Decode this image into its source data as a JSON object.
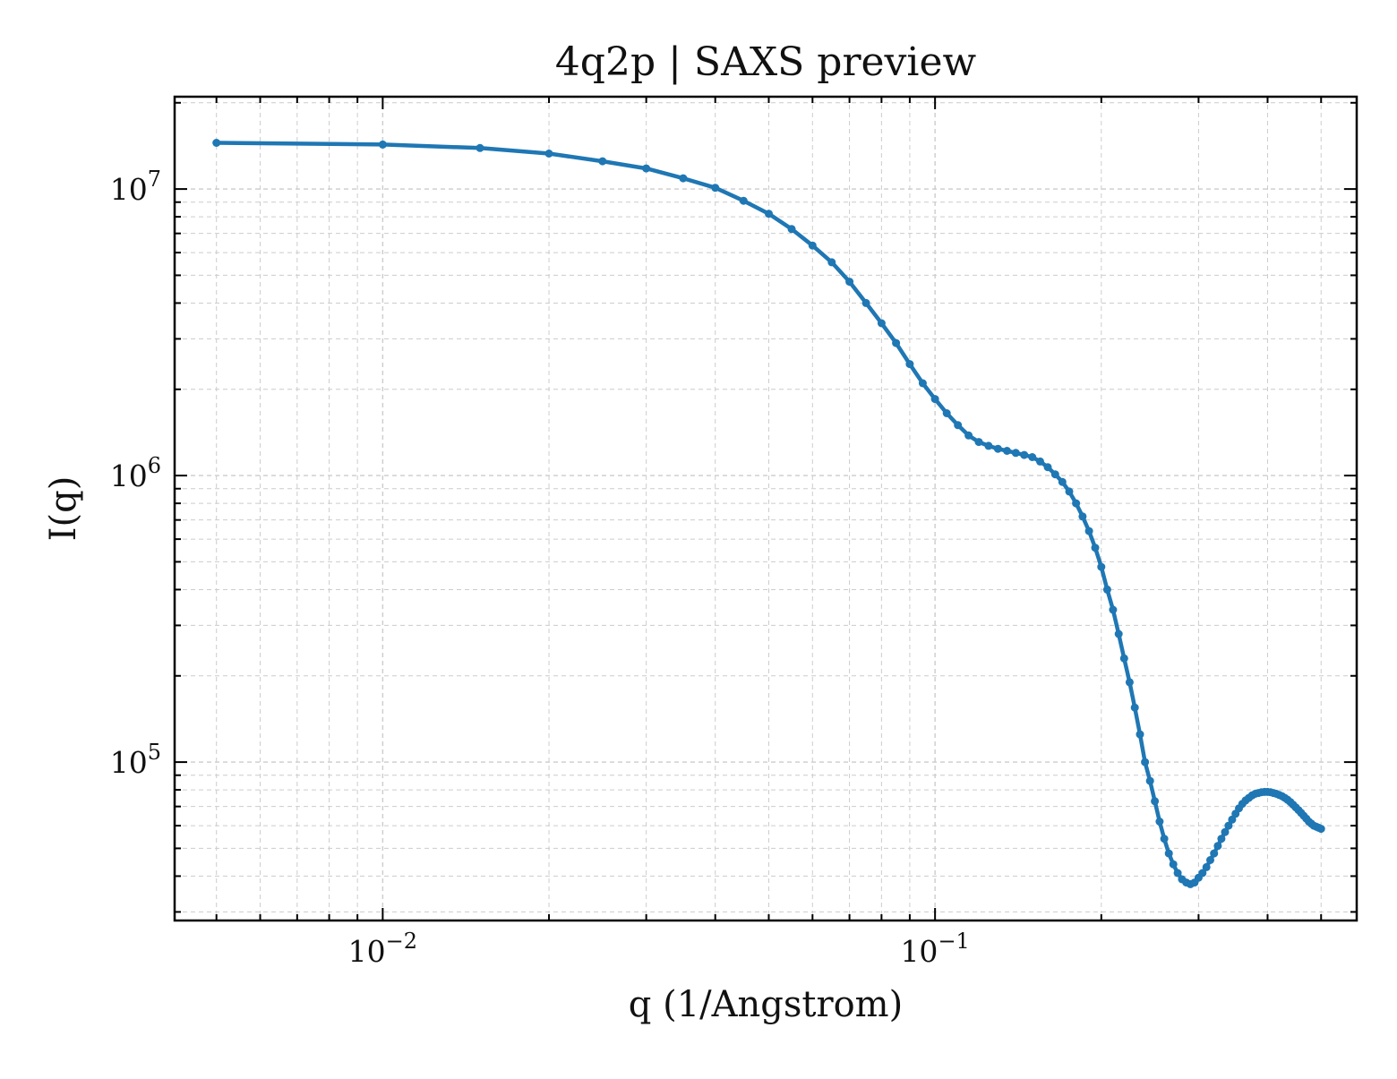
{
  "chart_data": {
    "type": "line",
    "title": "4q2p | SAXS preview",
    "xlabel": "q (1/Angstrom)",
    "ylabel": "I(q)",
    "xscale": "log",
    "yscale": "log",
    "xlim": [
      0.0042,
      0.58
    ],
    "ylim": [
      28000,
      21000000
    ],
    "grid": true,
    "x_ticks": [
      {
        "value": 0.01,
        "base": "10",
        "exp": "−2"
      },
      {
        "value": 0.1,
        "base": "10",
        "exp": "−1"
      }
    ],
    "y_ticks": [
      {
        "value": 100000,
        "base": "10",
        "exp": "5"
      },
      {
        "value": 1000000,
        "base": "10",
        "exp": "6"
      },
      {
        "value": 10000000,
        "base": "10",
        "exp": "7"
      }
    ],
    "line_color": "#1f77b4",
    "series": [
      {
        "x": [
          0.005,
          0.01,
          0.015,
          0.02,
          0.025,
          0.03,
          0.035,
          0.04,
          0.045,
          0.05,
          0.055,
          0.06,
          0.065,
          0.07,
          0.075,
          0.08,
          0.085,
          0.09,
          0.095,
          0.1,
          0.105,
          0.11,
          0.115,
          0.12,
          0.125,
          0.13,
          0.135,
          0.14,
          0.145,
          0.15,
          0.155,
          0.16,
          0.165,
          0.17,
          0.175,
          0.18,
          0.185,
          0.19,
          0.195,
          0.2,
          0.205,
          0.21,
          0.215,
          0.22,
          0.225,
          0.23,
          0.235,
          0.24,
          0.245,
          0.25,
          0.255,
          0.26,
          0.265,
          0.27,
          0.275,
          0.28,
          0.285,
          0.29,
          0.295,
          0.3,
          0.305,
          0.31,
          0.315,
          0.32,
          0.325,
          0.33,
          0.335,
          0.34,
          0.345,
          0.35,
          0.355,
          0.36,
          0.365,
          0.37,
          0.375,
          0.38,
          0.385,
          0.39,
          0.395,
          0.4,
          0.405,
          0.41,
          0.415,
          0.42,
          0.425,
          0.43,
          0.435,
          0.44,
          0.445,
          0.45,
          0.455,
          0.46,
          0.465,
          0.47,
          0.475,
          0.48,
          0.485,
          0.49,
          0.495,
          0.5
        ],
        "y": [
          14500000,
          14300000,
          13900000,
          13300000,
          12500000,
          11800000,
          10900000,
          10100000,
          9100000,
          8200000,
          7250000,
          6350000,
          5550000,
          4750000,
          4000000,
          3400000,
          2900000,
          2450000,
          2100000,
          1850000,
          1650000,
          1500000,
          1380000,
          1310000,
          1270000,
          1240000,
          1220000,
          1200000,
          1180000,
          1160000,
          1120000,
          1070000,
          1010000,
          950000,
          880000,
          800000,
          720000,
          640000,
          560000,
          480000,
          400000,
          340000,
          280000,
          230000,
          190000,
          155000,
          125000,
          100000,
          86000,
          73000,
          62000,
          54000,
          48000,
          44000,
          41000,
          39000,
          38000,
          37500,
          38000,
          39500,
          41000,
          43000,
          45500,
          48000,
          51000,
          54000,
          57000,
          60000,
          63000,
          66000,
          69000,
          71500,
          73500,
          75000,
          76500,
          77500,
          78000,
          78500,
          78700,
          78700,
          78500,
          78000,
          77500,
          76800,
          76000,
          75000,
          73800,
          72500,
          71000,
          69500,
          68000,
          66500,
          65000,
          63500,
          62000,
          61000,
          60000,
          59500,
          59000,
          58500
        ]
      }
    ]
  }
}
